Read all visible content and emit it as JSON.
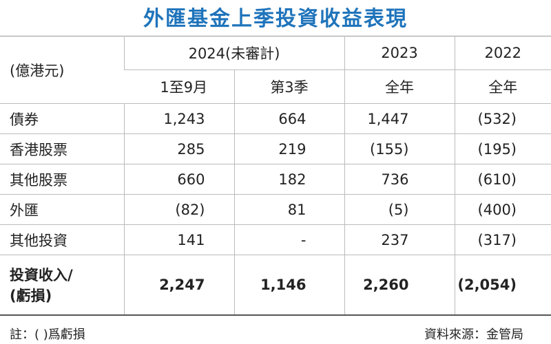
{
  "header": {
    "title": "外匯基金上季投資收益表現"
  },
  "table": {
    "header_row1": [
      "(億港元)",
      "2024(未審計)",
      "2023",
      "2022"
    ],
    "header_row2": [
      "1至9月",
      "第3季",
      "全年",
      "全年"
    ],
    "rows": [
      [
        "債券",
        "1,243",
        "664",
        "1,447",
        "(532)"
      ],
      [
        "香港股票",
        "285",
        "219",
        "(155)",
        "(195)"
      ],
      [
        "其他股票",
        "660",
        "182",
        "736",
        "(610)"
      ],
      [
        "外匯",
        "(82)",
        "81",
        "(5)",
        "(400)"
      ],
      [
        "其他投資",
        "141",
        "-",
        "237",
        "(317)"
      ]
    ],
    "total_row": {
      "label": [
        "投資收入/",
        "(虧損)"
      ],
      "values": [
        "2,247",
        "1,146",
        "2,260",
        "(2,054)"
      ]
    }
  },
  "footnote": "註：( )爲虧損",
  "source": "資料來源：金管局"
}
